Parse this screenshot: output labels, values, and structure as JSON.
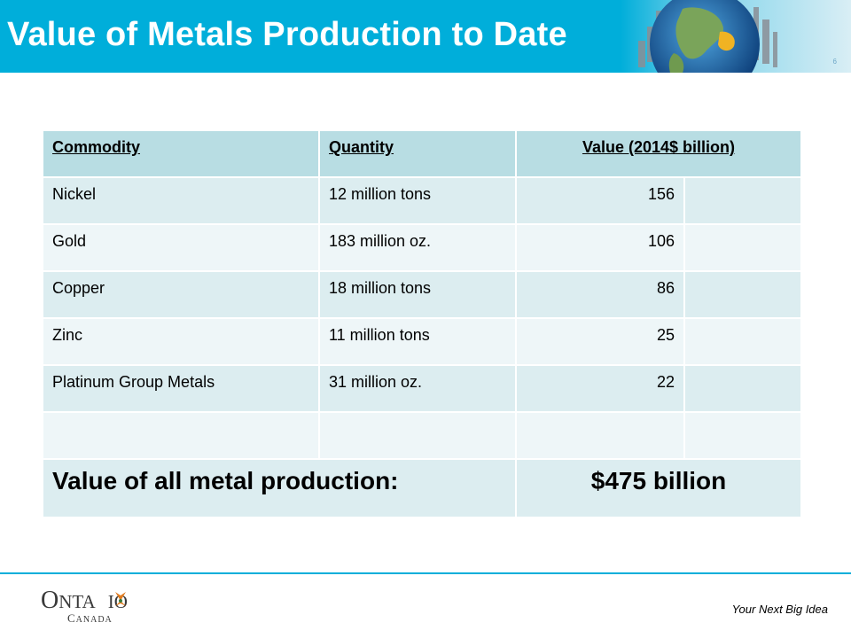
{
  "slide": {
    "title": "Value of Metals Production to Date",
    "number": "6"
  },
  "table": {
    "headers": [
      "Commodity",
      "Quantity",
      "Value (2014$ billion)",
      ""
    ],
    "rows": [
      {
        "commodity": "Nickel",
        "quantity": "12 million tons",
        "value": "156"
      },
      {
        "commodity": "Gold",
        "quantity": "183 million oz.",
        "value": "106"
      },
      {
        "commodity": "Copper",
        "quantity": "18 million tons",
        "value": "86"
      },
      {
        "commodity": "Zinc",
        "quantity": "11 million tons",
        "value": "25"
      },
      {
        "commodity": "Platinum Group Metals",
        "quantity": "31 million oz.",
        "value": "22"
      },
      {
        "commodity": "",
        "quantity": "",
        "value": ""
      }
    ],
    "total_label": "Value of all metal production:",
    "total_value": "$475 billion"
  },
  "footer": {
    "logo_line1": "ONTARIO",
    "logo_line2": "CANADA",
    "tagline": "Your Next Big Idea"
  },
  "colors": {
    "title_bar": "#00aeda",
    "header_cell": "#b8dde3",
    "row_dark": "#dcedf0",
    "row_light": "#eef6f8",
    "trillium": "#e07b1f"
  }
}
